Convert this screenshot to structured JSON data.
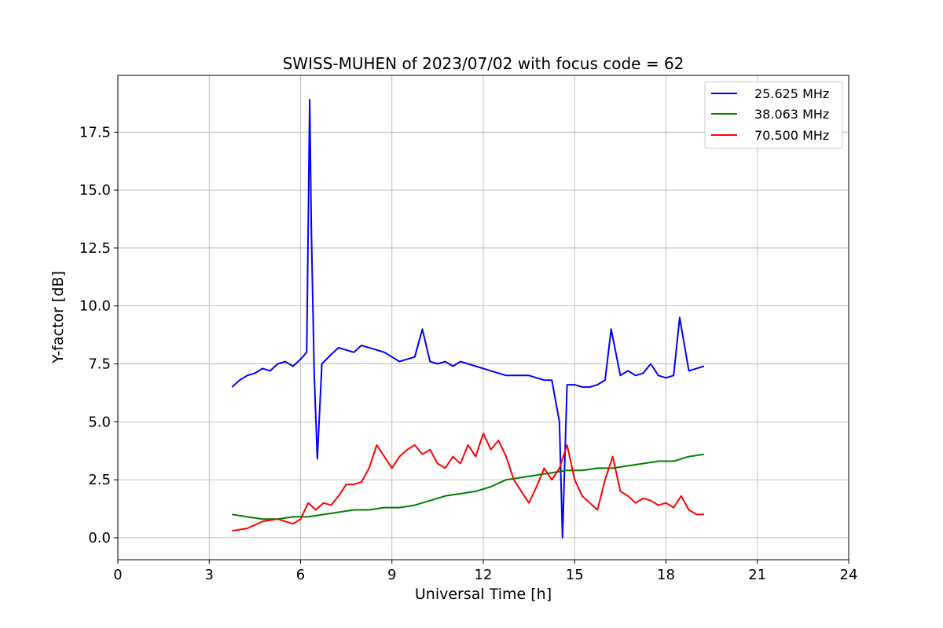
{
  "chart_data": {
    "type": "line",
    "title": "SWISS-MUHEN of 2023/07/02 with focus code = 62",
    "xlabel": "Universal Time [h]",
    "ylabel": "Y-factor [dB]",
    "xlim": [
      0,
      24
    ],
    "ylim": [
      -0.95,
      19.95
    ],
    "xticks": [
      0,
      3,
      6,
      9,
      12,
      15,
      18,
      21,
      24
    ],
    "xtick_labels": [
      "0",
      "3",
      "6",
      "9",
      "12",
      "15",
      "18",
      "21",
      "24"
    ],
    "yticks": [
      0.0,
      2.5,
      5.0,
      7.5,
      10.0,
      12.5,
      15.0,
      17.5
    ],
    "ytick_labels": [
      "0.0",
      "2.5",
      "5.0",
      "7.5",
      "10.0",
      "12.5",
      "15.0",
      "17.5"
    ],
    "grid": true,
    "legend_position": "top-right",
    "series": [
      {
        "name": "25.625 MHz",
        "color": "#0000ff",
        "points": [
          [
            3.75,
            6.5
          ],
          [
            4.0,
            6.8
          ],
          [
            4.25,
            7.0
          ],
          [
            4.5,
            7.1
          ],
          [
            4.75,
            7.3
          ],
          [
            5.0,
            7.2
          ],
          [
            5.25,
            7.5
          ],
          [
            5.5,
            7.6
          ],
          [
            5.75,
            7.4
          ],
          [
            6.0,
            7.7
          ],
          [
            6.2,
            8.0
          ],
          [
            6.3,
            18.9
          ],
          [
            6.35,
            13.5
          ],
          [
            6.45,
            7.0
          ],
          [
            6.55,
            3.4
          ],
          [
            6.7,
            7.5
          ],
          [
            7.0,
            7.9
          ],
          [
            7.25,
            8.2
          ],
          [
            7.5,
            8.1
          ],
          [
            7.75,
            8.0
          ],
          [
            8.0,
            8.3
          ],
          [
            8.25,
            8.2
          ],
          [
            8.5,
            8.1
          ],
          [
            8.75,
            8.0
          ],
          [
            9.0,
            7.8
          ],
          [
            9.25,
            7.6
          ],
          [
            9.5,
            7.7
          ],
          [
            9.75,
            7.8
          ],
          [
            10.0,
            9.0
          ],
          [
            10.25,
            7.6
          ],
          [
            10.5,
            7.5
          ],
          [
            10.75,
            7.6
          ],
          [
            11.0,
            7.4
          ],
          [
            11.25,
            7.6
          ],
          [
            11.5,
            7.5
          ],
          [
            11.75,
            7.4
          ],
          [
            12.0,
            7.3
          ],
          [
            12.25,
            7.2
          ],
          [
            12.5,
            7.1
          ],
          [
            12.75,
            7.0
          ],
          [
            13.0,
            7.0
          ],
          [
            13.25,
            7.0
          ],
          [
            13.5,
            7.0
          ],
          [
            13.75,
            6.9
          ],
          [
            14.0,
            6.8
          ],
          [
            14.25,
            6.8
          ],
          [
            14.5,
            5.0
          ],
          [
            14.6,
            0.0
          ],
          [
            14.75,
            6.6
          ],
          [
            15.0,
            6.6
          ],
          [
            15.25,
            6.5
          ],
          [
            15.5,
            6.5
          ],
          [
            15.75,
            6.6
          ],
          [
            16.0,
            6.8
          ],
          [
            16.2,
            9.0
          ],
          [
            16.5,
            7.0
          ],
          [
            16.75,
            7.2
          ],
          [
            17.0,
            7.0
          ],
          [
            17.25,
            7.1
          ],
          [
            17.5,
            7.5
          ],
          [
            17.75,
            7.0
          ],
          [
            18.0,
            6.9
          ],
          [
            18.25,
            7.0
          ],
          [
            18.45,
            9.5
          ],
          [
            18.75,
            7.2
          ],
          [
            19.0,
            7.3
          ],
          [
            19.25,
            7.4
          ]
        ]
      },
      {
        "name": "38.063 MHz",
        "color": "#008000",
        "points": [
          [
            3.75,
            1.0
          ],
          [
            4.25,
            0.9
          ],
          [
            4.75,
            0.8
          ],
          [
            5.25,
            0.8
          ],
          [
            5.75,
            0.9
          ],
          [
            6.25,
            0.9
          ],
          [
            6.75,
            1.0
          ],
          [
            7.25,
            1.1
          ],
          [
            7.75,
            1.2
          ],
          [
            8.25,
            1.2
          ],
          [
            8.75,
            1.3
          ],
          [
            9.25,
            1.3
          ],
          [
            9.75,
            1.4
          ],
          [
            10.25,
            1.6
          ],
          [
            10.75,
            1.8
          ],
          [
            11.25,
            1.9
          ],
          [
            11.75,
            2.0
          ],
          [
            12.25,
            2.2
          ],
          [
            12.75,
            2.5
          ],
          [
            13.25,
            2.6
          ],
          [
            13.75,
            2.7
          ],
          [
            14.25,
            2.8
          ],
          [
            14.75,
            2.9
          ],
          [
            15.25,
            2.9
          ],
          [
            15.75,
            3.0
          ],
          [
            16.25,
            3.0
          ],
          [
            16.75,
            3.1
          ],
          [
            17.25,
            3.2
          ],
          [
            17.75,
            3.3
          ],
          [
            18.25,
            3.3
          ],
          [
            18.75,
            3.5
          ],
          [
            19.25,
            3.6
          ]
        ]
      },
      {
        "name": "70.500 MHz",
        "color": "#ff0000",
        "points": [
          [
            3.75,
            0.3
          ],
          [
            4.25,
            0.4
          ],
          [
            4.75,
            0.7
          ],
          [
            5.25,
            0.8
          ],
          [
            5.75,
            0.6
          ],
          [
            6.0,
            0.8
          ],
          [
            6.25,
            1.5
          ],
          [
            6.5,
            1.2
          ],
          [
            6.75,
            1.5
          ],
          [
            7.0,
            1.4
          ],
          [
            7.25,
            1.8
          ],
          [
            7.5,
            2.3
          ],
          [
            7.75,
            2.3
          ],
          [
            8.0,
            2.4
          ],
          [
            8.25,
            3.0
          ],
          [
            8.5,
            4.0
          ],
          [
            8.75,
            3.5
          ],
          [
            9.0,
            3.0
          ],
          [
            9.25,
            3.5
          ],
          [
            9.5,
            3.8
          ],
          [
            9.75,
            4.0
          ],
          [
            10.0,
            3.6
          ],
          [
            10.25,
            3.8
          ],
          [
            10.5,
            3.2
          ],
          [
            10.75,
            3.0
          ],
          [
            11.0,
            3.5
          ],
          [
            11.25,
            3.2
          ],
          [
            11.5,
            4.0
          ],
          [
            11.75,
            3.5
          ],
          [
            12.0,
            4.5
          ],
          [
            12.25,
            3.8
          ],
          [
            12.5,
            4.2
          ],
          [
            12.75,
            3.5
          ],
          [
            13.0,
            2.5
          ],
          [
            13.25,
            2.0
          ],
          [
            13.5,
            1.5
          ],
          [
            13.75,
            2.2
          ],
          [
            14.0,
            3.0
          ],
          [
            14.25,
            2.5
          ],
          [
            14.5,
            3.0
          ],
          [
            14.75,
            4.0
          ],
          [
            15.0,
            2.5
          ],
          [
            15.25,
            1.8
          ],
          [
            15.5,
            1.5
          ],
          [
            15.75,
            1.2
          ],
          [
            16.0,
            2.5
          ],
          [
            16.25,
            3.5
          ],
          [
            16.5,
            2.0
          ],
          [
            16.75,
            1.8
          ],
          [
            17.0,
            1.5
          ],
          [
            17.25,
            1.7
          ],
          [
            17.5,
            1.6
          ],
          [
            17.75,
            1.4
          ],
          [
            18.0,
            1.5
          ],
          [
            18.25,
            1.3
          ],
          [
            18.5,
            1.8
          ],
          [
            18.75,
            1.2
          ],
          [
            19.0,
            1.0
          ],
          [
            19.25,
            1.0
          ]
        ]
      }
    ]
  }
}
